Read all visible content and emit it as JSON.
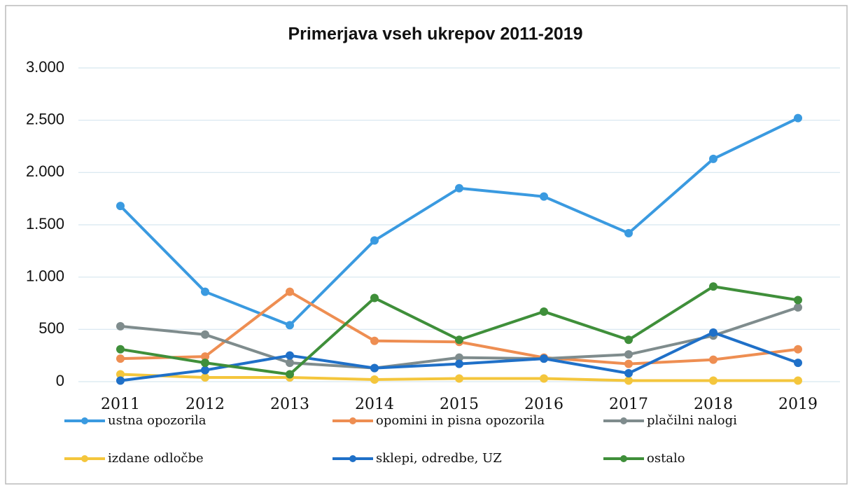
{
  "chart_data": {
    "type": "line",
    "title": "Primerjava vseh ukrepov 2011-2019",
    "categories": [
      "2011",
      "2012",
      "2013",
      "2014",
      "2015",
      "2016",
      "2017",
      "2018",
      "2019"
    ],
    "series": [
      {
        "name": "ustna opozorila",
        "color": "#3a9ae0",
        "values": [
          1680,
          860,
          540,
          1350,
          1850,
          1770,
          1420,
          2130,
          2520
        ]
      },
      {
        "name": "opomini in pisna opozorila",
        "color": "#ee8e52",
        "values": [
          220,
          240,
          860,
          390,
          380,
          230,
          170,
          210,
          310
        ]
      },
      {
        "name": "plačilni nalogi",
        "color": "#7f8c8d",
        "values": [
          530,
          450,
          180,
          130,
          230,
          220,
          260,
          440,
          710
        ]
      },
      {
        "name": "izdane odločbe",
        "color": "#f4c63c",
        "values": [
          70,
          40,
          40,
          20,
          30,
          30,
          10,
          10,
          10
        ]
      },
      {
        "name": "sklepi, odredbe, UZ",
        "color": "#1f70c8",
        "values": [
          10,
          110,
          250,
          130,
          170,
          220,
          80,
          470,
          180
        ]
      },
      {
        "name": "ostalo",
        "color": "#3f8f3a",
        "values": [
          310,
          180,
          70,
          800,
          400,
          670,
          400,
          910,
          780
        ]
      }
    ],
    "ylim": [
      0,
      3000
    ],
    "yticks": [
      0,
      500,
      {
        "value": 1000,
        "label": "1.000"
      },
      {
        "value": 1500,
        "label": "1.500"
      },
      {
        "value": 2000,
        "label": "2.000"
      },
      {
        "value": 2500,
        "label": "2.500"
      },
      {
        "value": 3000,
        "label": "3.000"
      }
    ],
    "grid": true
  }
}
